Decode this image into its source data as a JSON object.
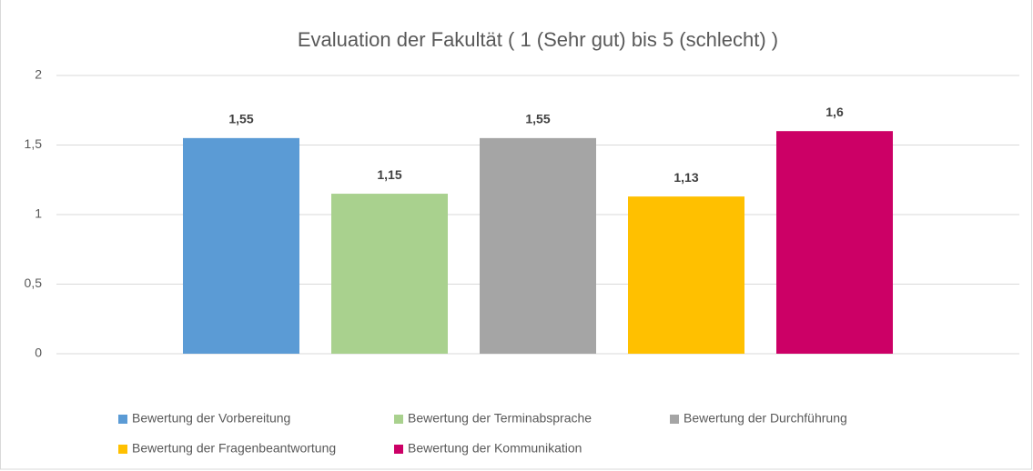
{
  "chart_data": {
    "type": "bar",
    "title": "Evaluation der Fakultät ( 1 (Sehr gut) bis 5 (schlecht) )",
    "series": [
      {
        "name": "Bewertung der Vorbereitung",
        "color": "#5b9bd5",
        "values": [
          1.55
        ],
        "value_labels": [
          "1,55"
        ]
      },
      {
        "name": "Bewertung der Terminabsprache",
        "color": "#a9d18e",
        "values": [
          1.15
        ],
        "value_labels": [
          "1,15"
        ]
      },
      {
        "name": "Bewertung der Durchführung",
        "color": "#a5a5a5",
        "values": [
          1.55
        ],
        "value_labels": [
          "1,55"
        ]
      },
      {
        "name": "Bewertung der Fragenbeantwortung",
        "color": "#ffc000",
        "values": [
          1.13
        ],
        "value_labels": [
          "1,13"
        ]
      },
      {
        "name": "Bewertung der Kommunikation",
        "color": "#cc0066",
        "values": [
          1.6
        ],
        "value_labels": [
          "1,6"
        ]
      }
    ],
    "ylim": [
      0,
      2
    ],
    "yticks": [
      0,
      {
        "value": 0.5,
        "label": "0,5"
      },
      1,
      {
        "value": 1.5,
        "label": "1,5"
      },
      2
    ],
    "grid": true,
    "legend": "bottom"
  }
}
